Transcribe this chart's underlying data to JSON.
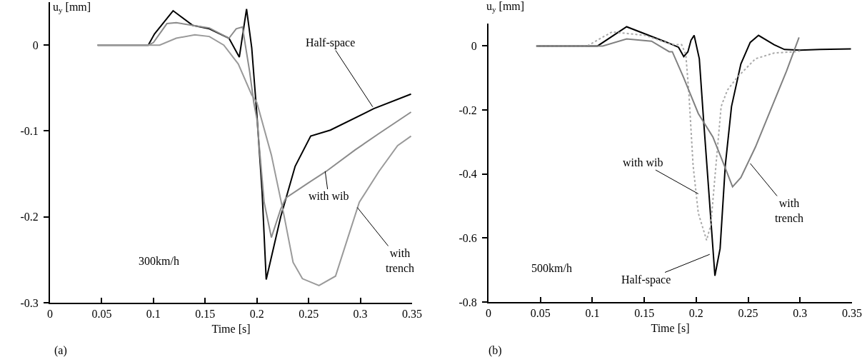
{
  "chart_data": [
    {
      "type": "line",
      "xlabel": "Time [s]",
      "ylabel": "u$_{y}$ [mm]",
      "xlim": [
        0,
        0.35
      ],
      "ylim": [
        -0.3,
        0.05
      ],
      "xticks": [
        0,
        0.05,
        0.1,
        0.15,
        0.2,
        0.25,
        0.3,
        0.35
      ],
      "yticks": [
        0,
        -0.1,
        -0.2,
        -0.3
      ],
      "grid": false,
      "marker": "none",
      "annotations": [
        "(a)",
        "300km/h",
        {
          "text": "Half-space",
          "x": 0.312,
          "y": -0.072
        },
        {
          "text": "with wib",
          "x": 0.266,
          "y": -0.147
        },
        {
          "text": "with trench",
          "x": 0.297,
          "y": -0.189
        }
      ],
      "series": [
        {
          "color": "#000000",
          "line_style": "solid",
          "x": [
            0.046,
            0.095,
            0.101,
            0.119,
            0.138,
            0.154,
            0.173,
            0.183,
            0.19,
            0.195,
            0.2,
            0.205,
            0.209,
            0.223,
            0.237,
            0.252,
            0.271,
            0.313,
            0.349
          ],
          "values": [
            0,
            0,
            0.013,
            0.04,
            0.023,
            0.019,
            0.008,
            -0.014,
            0.042,
            -0.003,
            -0.081,
            -0.17,
            -0.273,
            -0.2,
            -0.141,
            -0.106,
            -0.099,
            -0.074,
            -0.057
          ]
        },
        {
          "color": "#8c8c8c",
          "line_style": "solid",
          "x": [
            0.046,
            0.095,
            0.1,
            0.113,
            0.122,
            0.143,
            0.154,
            0.173,
            0.18,
            0.186,
            0.193,
            0.197,
            0.2,
            0.207,
            0.214,
            0.223,
            0.228,
            0.249,
            0.267,
            0.295,
            0.318,
            0.349
          ],
          "values": [
            0,
            0,
            0.003,
            0.025,
            0.026,
            0.022,
            0.02,
            0.008,
            0.019,
            0.021,
            -0.031,
            -0.067,
            -0.086,
            -0.183,
            -0.224,
            -0.191,
            -0.178,
            -0.161,
            -0.147,
            -0.122,
            -0.103,
            -0.078
          ]
        },
        {
          "color": "#9a9a9a",
          "line_style": "solid",
          "x": [
            0.046,
            0.106,
            0.122,
            0.14,
            0.154,
            0.168,
            0.182,
            0.195,
            0.2,
            0.214,
            0.226,
            0.235,
            0.244,
            0.26,
            0.276,
            0.288,
            0.299,
            0.318,
            0.336,
            0.349
          ],
          "values": [
            0,
            0,
            0.008,
            0.012,
            0.01,
            0,
            -0.022,
            -0.058,
            -0.067,
            -0.128,
            -0.197,
            -0.253,
            -0.272,
            -0.28,
            -0.269,
            -0.224,
            -0.183,
            -0.147,
            -0.117,
            -0.106
          ]
        }
      ]
    },
    {
      "type": "line",
      "xlabel": "Time [s]",
      "ylabel": "u$_{y}$ [mm]",
      "xlim": [
        0,
        0.35
      ],
      "ylim": [
        -0.8,
        0.07
      ],
      "xticks": [
        0,
        0.05,
        0.1,
        0.15,
        0.2,
        0.25,
        0.3,
        0.35
      ],
      "yticks": [
        0,
        -0.2,
        -0.4,
        -0.6,
        -0.8
      ],
      "grid": false,
      "marker": "none",
      "annotations": [
        "(b)",
        "500km/h",
        {
          "text": "with wib",
          "x": 0.202,
          "y": -0.462
        },
        {
          "text": "Half-space",
          "x": 0.213,
          "y": -0.651
        },
        {
          "text": "with trench",
          "x": 0.252,
          "y": -0.367
        }
      ],
      "series": [
        {
          "color": "#000000",
          "line_style": "solid",
          "x": [
            0.046,
            0.105,
            0.133,
            0.172,
            0.183,
            0.188,
            0.192,
            0.195,
            0.198,
            0.203,
            0.207,
            0.212,
            0.218,
            0.223,
            0.228,
            0.234,
            0.243,
            0.252,
            0.26,
            0.275,
            0.285,
            0.3,
            0.319,
            0.349
          ],
          "values": [
            0,
            0,
            0.06,
            0.011,
            -0.004,
            -0.033,
            -0.018,
            0.018,
            0.033,
            -0.04,
            -0.227,
            -0.449,
            -0.718,
            -0.633,
            -0.373,
            -0.189,
            -0.056,
            0.011,
            0.033,
            0.004,
            -0.011,
            -0.013,
            -0.011,
            -0.009
          ]
        },
        {
          "color": "#aaaaaa",
          "line_style": "dotted",
          "x": [
            0.046,
            0.095,
            0.119,
            0.151,
            0.174,
            0.179,
            0.186,
            0.19,
            0.193,
            0.197,
            0.202,
            0.21,
            0.214,
            0.219,
            0.224,
            0.23,
            0.239,
            0.257,
            0.275,
            0.295,
            0.301
          ],
          "values": [
            0,
            0,
            0.044,
            0.033,
            0.007,
            0.004,
            0.004,
            -0.027,
            -0.151,
            -0.373,
            -0.522,
            -0.607,
            -0.56,
            -0.373,
            -0.189,
            -0.138,
            -0.1,
            -0.04,
            -0.022,
            -0.018,
            -0.015
          ]
        },
        {
          "color": "#808080",
          "line_style": "solid",
          "x": [
            0.046,
            0.11,
            0.133,
            0.157,
            0.174,
            0.177,
            0.188,
            0.202,
            0.216,
            0.227,
            0.235,
            0.243,
            0.257,
            0.273,
            0.287,
            0.299
          ],
          "values": [
            0,
            0,
            0.022,
            0.015,
            -0.018,
            -0.018,
            -0.1,
            -0.211,
            -0.284,
            -0.373,
            -0.44,
            -0.411,
            -0.316,
            -0.189,
            -0.078,
            0.027
          ]
        }
      ]
    }
  ]
}
